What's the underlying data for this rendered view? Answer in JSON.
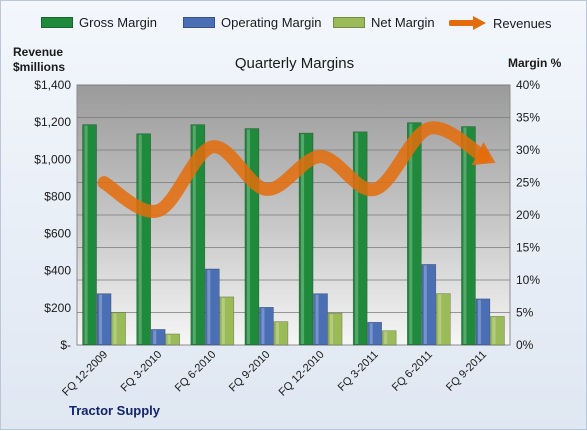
{
  "chart_data": {
    "type": "bar",
    "title": "Quarterly Margins",
    "company": "Tractor Supply",
    "categories": [
      "FQ 12-2009",
      "FQ 3-2010",
      "FQ 6-2010",
      "FQ 9-2010",
      "FQ 12-2010",
      "FQ 3-2011",
      "FQ 6-2011",
      "FQ 9-2011"
    ],
    "y_left": {
      "label_line1": "Revenue",
      "label_line2": "$millions",
      "range": [
        0,
        1400
      ],
      "ticks": [
        0,
        200,
        400,
        600,
        800,
        1000,
        1200,
        1400
      ],
      "tick_labels": [
        "$-",
        "$200",
        "$400",
        "$600",
        "$800",
        "$1,000",
        "$1,200",
        "$1,400"
      ]
    },
    "y_right": {
      "label": "Margin %",
      "range": [
        0,
        40
      ],
      "ticks": [
        0,
        5,
        10,
        15,
        20,
        25,
        30,
        35,
        40
      ],
      "tick_labels": [
        "0%",
        "5%",
        "10%",
        "15%",
        "20%",
        "25%",
        "30%",
        "35%",
        "40%"
      ]
    },
    "grid": true,
    "legend_position": "top",
    "series": [
      {
        "name": "Gross Margin",
        "kind": "bar",
        "axis": "right",
        "color": "#1f8a3c",
        "values": [
          33.9,
          32.5,
          33.9,
          33.3,
          32.6,
          32.8,
          34.2,
          33.6
        ]
      },
      {
        "name": "Operating Margin",
        "kind": "bar",
        "axis": "right",
        "color": "#4a6fb5",
        "values": [
          7.9,
          2.4,
          11.7,
          5.8,
          7.9,
          3.5,
          12.4,
          7.1
        ]
      },
      {
        "name": "Net Margin",
        "kind": "bar",
        "axis": "right",
        "color": "#9bbb59",
        "values": [
          5.0,
          1.7,
          7.4,
          3.6,
          4.9,
          2.2,
          7.9,
          4.4
        ]
      },
      {
        "name": "Revenues",
        "kind": "line",
        "axis": "left",
        "color": "#e46c0a",
        "values": [
          874,
          723,
          1067,
          838,
          1015,
          838,
          1166,
          1016
        ]
      }
    ]
  }
}
